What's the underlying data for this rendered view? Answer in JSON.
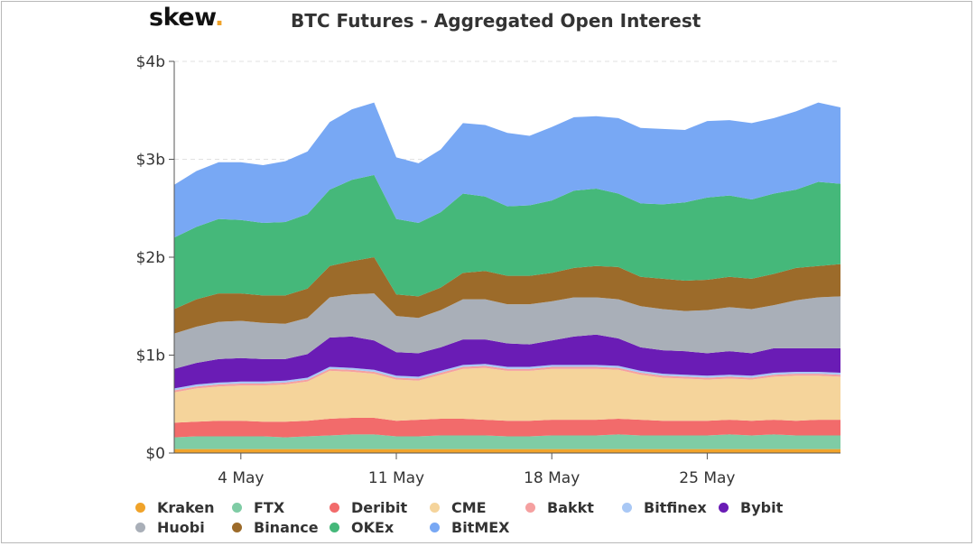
{
  "logo": {
    "text": "skew",
    "dot": "."
  },
  "chart_data": {
    "type": "area",
    "stacked": true,
    "title": "BTC Futures - Aggregated Open Interest",
    "ylabel": "",
    "xlabel": "",
    "ylim": [
      0,
      4
    ],
    "y_unit": "$ billions",
    "yticks": [
      "$0",
      "$1b",
      "$2b",
      "$3b",
      "$4b"
    ],
    "xticks": [
      "4 May",
      "11 May",
      "18 May",
      "25 May"
    ],
    "x": [
      "1 May",
      "2 May",
      "3 May",
      "4 May",
      "5 May",
      "6 May",
      "7 May",
      "8 May",
      "9 May",
      "10 May",
      "11 May",
      "12 May",
      "13 May",
      "14 May",
      "15 May",
      "16 May",
      "17 May",
      "18 May",
      "19 May",
      "20 May",
      "21 May",
      "22 May",
      "23 May",
      "24 May",
      "25 May",
      "26 May",
      "27 May",
      "28 May",
      "29 May",
      "30 May",
      "31 May"
    ],
    "grid": true,
    "legend_position": "bottom",
    "series": [
      {
        "name": "Kraken",
        "color": "#f0a32a",
        "values": [
          0.04,
          0.04,
          0.04,
          0.04,
          0.04,
          0.04,
          0.04,
          0.04,
          0.04,
          0.04,
          0.04,
          0.04,
          0.04,
          0.04,
          0.04,
          0.04,
          0.04,
          0.04,
          0.04,
          0.04,
          0.04,
          0.04,
          0.04,
          0.04,
          0.04,
          0.04,
          0.04,
          0.04,
          0.04,
          0.04,
          0.04
        ]
      },
      {
        "name": "FTX",
        "color": "#7fcca5",
        "values": [
          0.12,
          0.13,
          0.13,
          0.13,
          0.13,
          0.12,
          0.13,
          0.14,
          0.15,
          0.15,
          0.13,
          0.13,
          0.14,
          0.14,
          0.14,
          0.13,
          0.13,
          0.14,
          0.14,
          0.14,
          0.15,
          0.14,
          0.14,
          0.14,
          0.14,
          0.15,
          0.14,
          0.15,
          0.14,
          0.14,
          0.14
        ]
      },
      {
        "name": "Deribit",
        "color": "#f26b6b",
        "values": [
          0.15,
          0.15,
          0.16,
          0.16,
          0.15,
          0.16,
          0.16,
          0.17,
          0.17,
          0.17,
          0.16,
          0.17,
          0.17,
          0.17,
          0.16,
          0.16,
          0.16,
          0.16,
          0.16,
          0.16,
          0.16,
          0.16,
          0.15,
          0.15,
          0.15,
          0.15,
          0.15,
          0.15,
          0.15,
          0.16,
          0.16
        ]
      },
      {
        "name": "CME",
        "color": "#f5d49b",
        "values": [
          0.31,
          0.34,
          0.35,
          0.36,
          0.37,
          0.38,
          0.4,
          0.49,
          0.47,
          0.45,
          0.42,
          0.4,
          0.45,
          0.51,
          0.53,
          0.51,
          0.51,
          0.52,
          0.52,
          0.52,
          0.5,
          0.46,
          0.44,
          0.43,
          0.42,
          0.42,
          0.42,
          0.44,
          0.46,
          0.45,
          0.44
        ]
      },
      {
        "name": "Bakkt",
        "color": "#f5a0a0",
        "values": [
          0.02,
          0.02,
          0.02,
          0.02,
          0.02,
          0.02,
          0.02,
          0.02,
          0.02,
          0.02,
          0.02,
          0.02,
          0.02,
          0.02,
          0.02,
          0.02,
          0.02,
          0.02,
          0.02,
          0.02,
          0.02,
          0.02,
          0.02,
          0.02,
          0.02,
          0.02,
          0.02,
          0.02,
          0.02,
          0.02,
          0.02
        ]
      },
      {
        "name": "Bitfinex",
        "color": "#a9c8f5",
        "values": [
          0.02,
          0.02,
          0.02,
          0.02,
          0.02,
          0.02,
          0.02,
          0.02,
          0.02,
          0.02,
          0.02,
          0.02,
          0.02,
          0.02,
          0.02,
          0.02,
          0.02,
          0.02,
          0.02,
          0.02,
          0.02,
          0.02,
          0.02,
          0.02,
          0.02,
          0.02,
          0.02,
          0.02,
          0.02,
          0.02,
          0.02
        ]
      },
      {
        "name": "Bybit",
        "color": "#6a1cb5",
        "values": [
          0.2,
          0.22,
          0.24,
          0.24,
          0.23,
          0.22,
          0.24,
          0.3,
          0.32,
          0.3,
          0.24,
          0.24,
          0.24,
          0.26,
          0.25,
          0.24,
          0.23,
          0.25,
          0.29,
          0.31,
          0.28,
          0.24,
          0.24,
          0.24,
          0.23,
          0.24,
          0.23,
          0.25,
          0.24,
          0.24,
          0.25
        ]
      },
      {
        "name": "Huobi",
        "color": "#a9afb8",
        "values": [
          0.36,
          0.37,
          0.38,
          0.38,
          0.37,
          0.36,
          0.37,
          0.41,
          0.43,
          0.48,
          0.37,
          0.36,
          0.38,
          0.41,
          0.41,
          0.4,
          0.41,
          0.4,
          0.4,
          0.38,
          0.4,
          0.42,
          0.42,
          0.41,
          0.44,
          0.45,
          0.45,
          0.44,
          0.49,
          0.52,
          0.53
        ]
      },
      {
        "name": "Binance",
        "color": "#9c6b2a",
        "values": [
          0.25,
          0.28,
          0.29,
          0.28,
          0.28,
          0.29,
          0.3,
          0.32,
          0.34,
          0.37,
          0.22,
          0.22,
          0.23,
          0.27,
          0.29,
          0.29,
          0.29,
          0.29,
          0.3,
          0.32,
          0.33,
          0.3,
          0.31,
          0.31,
          0.31,
          0.31,
          0.31,
          0.32,
          0.33,
          0.32,
          0.33
        ]
      },
      {
        "name": "OKEx",
        "color": "#45b87a",
        "values": [
          0.73,
          0.74,
          0.76,
          0.75,
          0.74,
          0.75,
          0.76,
          0.78,
          0.83,
          0.84,
          0.77,
          0.75,
          0.77,
          0.81,
          0.76,
          0.71,
          0.72,
          0.74,
          0.79,
          0.79,
          0.75,
          0.75,
          0.76,
          0.8,
          0.84,
          0.83,
          0.81,
          0.82,
          0.8,
          0.86,
          0.82
        ]
      },
      {
        "name": "BitMEX",
        "color": "#78a8f4",
        "values": [
          0.54,
          0.57,
          0.58,
          0.59,
          0.59,
          0.62,
          0.64,
          0.69,
          0.72,
          0.74,
          0.63,
          0.61,
          0.64,
          0.72,
          0.73,
          0.75,
          0.71,
          0.75,
          0.75,
          0.74,
          0.77,
          0.77,
          0.77,
          0.74,
          0.78,
          0.77,
          0.78,
          0.77,
          0.8,
          0.81,
          0.78
        ]
      }
    ]
  }
}
